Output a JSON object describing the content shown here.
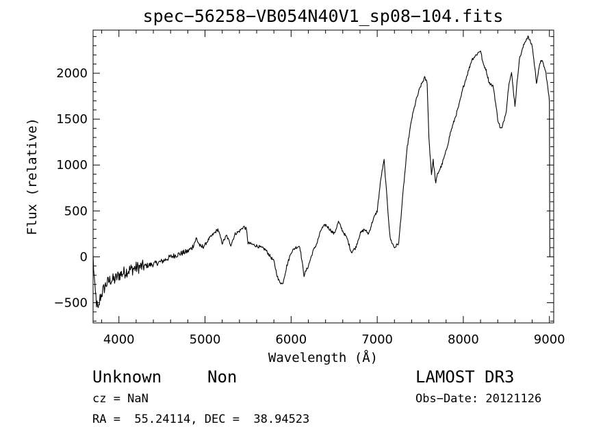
{
  "chart_data": {
    "type": "line",
    "title": "spec−56258−VB054N40V1_sp08−104.fits",
    "xlabel": "Wavelength (Å)",
    "ylabel": "Flux (relative)",
    "xlim": [
      3700,
      9050
    ],
    "ylim": [
      -720,
      2470
    ],
    "xticks": [
      4000,
      5000,
      6000,
      7000,
      8000,
      9000
    ],
    "xtick_labels": [
      "4000",
      "5000",
      "6000",
      "7000",
      "8000",
      "9000"
    ],
    "yticks": [
      -500,
      0,
      500,
      1000,
      1500,
      2000
    ],
    "ytick_labels": [
      "−500",
      "0",
      "500",
      "1000",
      "1500",
      "2000"
    ],
    "grid": false,
    "series": [
      {
        "name": "flux",
        "x": [
          3700,
          3720,
          3740,
          3760,
          3780,
          3800,
          3850,
          3900,
          3950,
          4000,
          4100,
          4200,
          4300,
          4400,
          4500,
          4600,
          4700,
          4800,
          4850,
          4900,
          4950,
          5000,
          5050,
          5100,
          5150,
          5200,
          5250,
          5300,
          5350,
          5400,
          5450,
          5480,
          5500,
          5600,
          5700,
          5800,
          5850,
          5900,
          5950,
          6000,
          6050,
          6100,
          6150,
          6200,
          6250,
          6300,
          6350,
          6400,
          6450,
          6500,
          6550,
          6600,
          6650,
          6700,
          6750,
          6800,
          6850,
          6900,
          6950,
          7000,
          7030,
          7050,
          7080,
          7100,
          7150,
          7200,
          7250,
          7300,
          7350,
          7400,
          7450,
          7500,
          7550,
          7580,
          7600,
          7630,
          7650,
          7680,
          7700,
          7750,
          7800,
          7850,
          7900,
          7950,
          8000,
          8050,
          8100,
          8150,
          8200,
          8230,
          8260,
          8300,
          8350,
          8400,
          8430,
          8450,
          8500,
          8530,
          8560,
          8600,
          8650,
          8700,
          8720,
          8750,
          8800,
          8850,
          8880,
          8900,
          8930,
          8960,
          9000,
          9005
        ],
        "y": [
          0,
          -350,
          -500,
          -600,
          -450,
          -400,
          -300,
          -250,
          -250,
          -200,
          -150,
          -120,
          -100,
          -80,
          -50,
          0,
          30,
          60,
          100,
          200,
          100,
          130,
          200,
          250,
          300,
          150,
          230,
          130,
          250,
          280,
          330,
          300,
          150,
          120,
          80,
          -50,
          -250,
          -300,
          -100,
          50,
          100,
          120,
          -200,
          -100,
          50,
          150,
          300,
          350,
          300,
          250,
          380,
          280,
          200,
          50,
          100,
          250,
          300,
          250,
          400,
          500,
          750,
          900,
          1050,
          800,
          200,
          100,
          150,
          700,
          1200,
          1500,
          1700,
          1850,
          1950,
          1900,
          1300,
          900,
          1050,
          800,
          900,
          1000,
          1150,
          1350,
          1500,
          1650,
          1850,
          2000,
          2150,
          2200,
          2250,
          2100,
          2050,
          1900,
          1850,
          1500,
          1400,
          1400,
          1600,
          1900,
          2000,
          1650,
          2150,
          2300,
          2350,
          2400,
          2300,
          1900,
          2050,
          2150,
          2100,
          2000,
          1700,
          0
        ]
      }
    ]
  },
  "footer": {
    "class_label": "Unknown",
    "subclass_label": "Non",
    "survey": "LAMOST DR3",
    "cz": "cz = NaN",
    "obs_date": "Obs−Date: 20121126",
    "coords": "RA =  55.24114, DEC =  38.94523"
  }
}
